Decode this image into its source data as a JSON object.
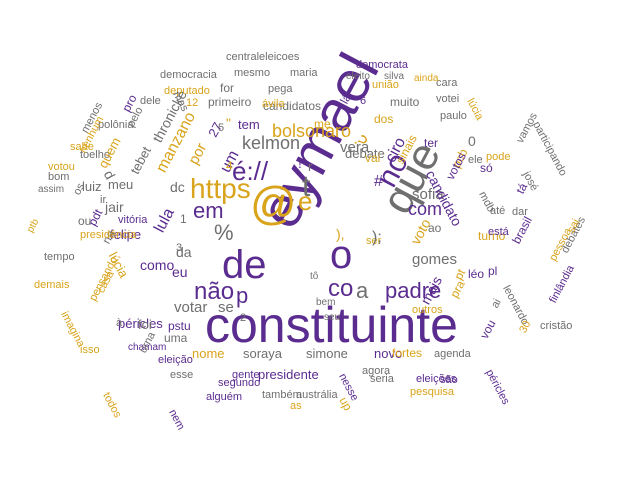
{
  "colors": {
    "purple": "#5b2c8f",
    "gold": "#d9a41c",
    "gray": "#6f6f6f"
  },
  "words": [
    {
      "t": "constituinte",
      "c": "purple",
      "s": 50
    },
    {
      "t": "eymael",
      "c": "purple",
      "s": 58
    },
    {
      "t": "que",
      "c": "gray",
      "s": 44
    },
    {
      "t": "@",
      "c": "gold",
      "s": 46
    },
    {
      "t": "o",
      "c": "purple",
      "s": 40
    },
    {
      "t": "de",
      "c": "purple",
      "s": 40
    },
    {
      "t": "https",
      "c": "gold",
      "s": 28
    },
    {
      "t": "é://",
      "c": "purple",
      "s": 26
    },
    {
      "t": "t",
      "c": "gray",
      "s": 30
    },
    {
      "t": "e",
      "c": "gold",
      "s": 26
    },
    {
      "t": "no",
      "c": "purple",
      "s": 30
    },
    {
      "t": "padre",
      "c": "purple",
      "s": 22
    },
    {
      "t": "co",
      "c": "purple",
      "s": 24
    },
    {
      "t": "a",
      "c": "gray",
      "s": 22
    },
    {
      "t": "não",
      "c": "purple",
      "s": 24
    },
    {
      "t": "em",
      "c": "purple",
      "s": 22
    },
    {
      "t": "%",
      "c": "gray",
      "s": 22
    },
    {
      "t": "p",
      "c": "purple",
      "s": 22
    },
    {
      "t": "bolsonaro",
      "c": "gold",
      "s": 18
    },
    {
      "t": "kelmon",
      "c": "gray",
      "s": 18
    },
    {
      "t": "vera",
      "c": "gray",
      "s": 15
    },
    {
      "t": "ciro",
      "c": "purple",
      "s": 16
    },
    {
      "t": "com",
      "c": "purple",
      "s": 18
    },
    {
      "t": "sofia",
      "c": "gray",
      "s": 15
    },
    {
      "t": "candidato",
      "c": "purple",
      "s": 14
    },
    {
      "t": "voto",
      "c": "gold",
      "s": 14
    },
    {
      "t": "gomes",
      "c": "gray",
      "s": 15
    },
    {
      "t": "mais",
      "c": "purple",
      "s": 14
    },
    {
      "t": "votar",
      "c": "gray",
      "s": 15
    },
    {
      "t": "se",
      "c": "gray",
      "s": 15
    },
    {
      "t": "péricles",
      "c": "purple",
      "s": 13
    },
    {
      "t": "lula",
      "c": "purple",
      "s": 16
    },
    {
      "t": "manzano",
      "c": "gold",
      "s": 16
    },
    {
      "t": "thronicke",
      "c": "gray",
      "s": 14
    },
    {
      "t": "tebet",
      "c": "gray",
      "s": 13
    },
    {
      "t": "felipe",
      "c": "purple",
      "s": 13
    },
    {
      "t": "jair",
      "c": "gray",
      "s": 14
    },
    {
      "t": "lúcia",
      "c": "gold",
      "s": 13
    },
    {
      "t": "pdt",
      "c": "purple",
      "s": 12
    },
    {
      "t": "luiz",
      "c": "gray",
      "s": 13
    },
    {
      "t": "meu",
      "c": "gray",
      "s": 13
    },
    {
      "t": "um",
      "c": "purple",
      "s": 16
    },
    {
      "t": "por",
      "c": "gold",
      "s": 15
    },
    {
      "t": "27",
      "c": "purple",
      "s": 13
    },
    {
      "t": "tem",
      "c": "purple",
      "s": 13
    },
    {
      "t": "dc",
      "c": "gray",
      "s": 14
    },
    {
      "t": "como",
      "c": "purple",
      "s": 14
    },
    {
      "t": "eu",
      "c": "purple",
      "s": 14
    },
    {
      "t": "da",
      "c": "gray",
      "s": 14
    },
    {
      "t": "foi",
      "c": "gray",
      "s": 13
    },
    {
      "t": "pstu",
      "c": "purple",
      "s": 12
    },
    {
      "t": "uma",
      "c": "gray",
      "s": 12
    },
    {
      "t": "nome",
      "c": "gold",
      "s": 13
    },
    {
      "t": "soraya",
      "c": "gray",
      "s": 13
    },
    {
      "t": "simone",
      "c": "gray",
      "s": 13
    },
    {
      "t": "novo",
      "c": "purple",
      "s": 13
    },
    {
      "t": "presidente",
      "c": "purple",
      "s": 13
    },
    {
      "t": "fortes",
      "c": "gold",
      "s": 12
    },
    {
      "t": "agenda",
      "c": "gray",
      "s": 11
    },
    {
      "t": "debate",
      "c": "gray",
      "s": 13
    },
    {
      "t": "turno",
      "c": "gold",
      "s": 12
    },
    {
      "t": "brasil",
      "c": "purple",
      "s": 12
    },
    {
      "t": "léo",
      "c": "purple",
      "s": 12
    },
    {
      "t": "pl",
      "c": "purple",
      "s": 12
    },
    {
      "t": "está",
      "c": "purple",
      "s": 11
    },
    {
      "t": "candidatos",
      "c": "gray",
      "s": 12
    },
    {
      "t": "muito",
      "c": "gray",
      "s": 12
    },
    {
      "t": "votei",
      "c": "gray",
      "s": 11
    },
    {
      "t": "dos",
      "c": "gold",
      "s": 12
    },
    {
      "t": "sinais",
      "c": "gold",
      "s": 12
    },
    {
      "t": "ter",
      "c": "purple",
      "s": 12
    },
    {
      "t": "pcb",
      "c": "gold",
      "s": 12
    },
    {
      "t": "vai",
      "c": "gold",
      "s": 12
    },
    {
      "t": "votos",
      "c": "purple",
      "s": 12
    },
    {
      "t": "só",
      "c": "purple",
      "s": 12
    },
    {
      "t": "pode",
      "c": "gold",
      "s": 11
    },
    {
      "t": "ele",
      "c": "gray",
      "s": 11
    },
    {
      "t": "mdb",
      "c": "gray",
      "s": 11
    },
    {
      "t": "tá",
      "c": "purple",
      "s": 12
    },
    {
      "t": "josé",
      "c": "gray",
      "s": 11
    },
    {
      "t": "até",
      "c": "gray",
      "s": 11
    },
    {
      "t": "dar",
      "c": "gray",
      "s": 11
    },
    {
      "t": "participando",
      "c": "gray",
      "s": 11
    },
    {
      "t": "vamos",
      "c": "gray",
      "s": 11
    },
    {
      "t": "lúcia",
      "c": "gold",
      "s": 11
    },
    {
      "t": "paulo",
      "c": "gray",
      "s": 11
    },
    {
      "t": "cara",
      "c": "gray",
      "s": 11
    },
    {
      "t": "união",
      "c": "gold",
      "s": 11
    },
    {
      "t": "ainda",
      "c": "gold",
      "s": 10
    },
    {
      "t": "silva",
      "c": "gray",
      "s": 10
    },
    {
      "t": "eleito",
      "c": "gray",
      "s": 10
    },
    {
      "t": "democrata",
      "c": "purple",
      "s": 11
    },
    {
      "t": "centraleleicoes",
      "c": "gray",
      "s": 11
    },
    {
      "t": "mesmo",
      "c": "gray",
      "s": 11
    },
    {
      "t": "maria",
      "c": "gray",
      "s": 11
    },
    {
      "t": "democracia",
      "c": "gray",
      "s": 11
    },
    {
      "t": "deputado",
      "c": "gold",
      "s": 11
    },
    {
      "t": "pega",
      "c": "gray",
      "s": 11
    },
    {
      "t": "ávila",
      "c": "gold",
      "s": 11
    },
    {
      "t": "primeiro",
      "c": "gray",
      "s": 12
    },
    {
      "t": "for",
      "c": "gray",
      "s": 12
    },
    {
      "t": "dele",
      "c": "gray",
      "s": 11
    },
    {
      "t": "mas",
      "c": "gray",
      "s": 11
    },
    {
      "t": "12",
      "c": "gold",
      "s": 11
    },
    {
      "t": "pelo",
      "c": "gray",
      "s": 11
    },
    {
      "t": "polônia",
      "c": "gray",
      "s": 11
    },
    {
      "t": "toelho",
      "c": "gray",
      "s": 11
    },
    {
      "t": "sabe",
      "c": "gold",
      "s": 11
    },
    {
      "t": "votou",
      "c": "gold",
      "s": 11
    },
    {
      "t": "bom",
      "c": "gray",
      "s": 11
    },
    {
      "t": "assim",
      "c": "gray",
      "s": 10
    },
    {
      "t": "menos",
      "c": "gray",
      "s": 11
    },
    {
      "t": "quem",
      "c": "gold",
      "s": 13
    },
    {
      "t": "nenhum",
      "c": "gold",
      "s": 11
    },
    {
      "t": "pro",
      "c": "purple",
      "s": 12
    },
    {
      "t": "ou",
      "c": "gray",
      "s": 12
    },
    {
      "t": "na",
      "c": "gray",
      "s": 12
    },
    {
      "t": "vitória",
      "c": "purple",
      "s": 11
    },
    {
      "t": "ptb",
      "c": "gold",
      "s": 10
    },
    {
      "t": "tempo",
      "c": "gray",
      "s": 11
    },
    {
      "t": "demais",
      "c": "gold",
      "s": 11
    },
    {
      "t": "os",
      "c": "gray",
      "s": 11
    },
    {
      "t": "presidência",
      "c": "gold",
      "s": 11
    },
    {
      "t": "casa",
      "c": "gold",
      "s": 11
    },
    {
      "t": "pensando",
      "c": "gold",
      "s": 11
    },
    {
      "t": "imagina",
      "c": "gold",
      "s": 11
    },
    {
      "t": "isso",
      "c": "gold",
      "s": 11
    },
    {
      "t": "chamam",
      "c": "purple",
      "s": 10
    },
    {
      "t": "todos",
      "c": "gold",
      "s": 11
    },
    {
      "t": "urna",
      "c": "gray",
      "s": 11
    },
    {
      "t": "eleição",
      "c": "purple",
      "s": 11
    },
    {
      "t": "esse",
      "c": "gray",
      "s": 11
    },
    {
      "t": "gente",
      "c": "purple",
      "s": 11
    },
    {
      "t": "segundo",
      "c": "purple",
      "s": 11
    },
    {
      "t": "alguém",
      "c": "purple",
      "s": 11
    },
    {
      "t": "nem",
      "c": "purple",
      "s": 11
    },
    {
      "t": "também",
      "c": "gray",
      "s": 11
    },
    {
      "t": "austrália",
      "c": "gray",
      "s": 11
    },
    {
      "t": "as",
      "c": "gold",
      "s": 11
    },
    {
      "t": "nesse",
      "c": "purple",
      "s": 11
    },
    {
      "t": "up",
      "c": "gold",
      "s": 12
    },
    {
      "t": "agora",
      "c": "gray",
      "s": 11
    },
    {
      "t": "seria",
      "c": "gray",
      "s": 11
    },
    {
      "t": "eleições",
      "c": "purple",
      "s": 11
    },
    {
      "t": "pesquisa",
      "c": "gold",
      "s": 11
    },
    {
      "t": "são",
      "c": "purple",
      "s": 11
    },
    {
      "t": "outros",
      "c": "gold",
      "s": 11
    },
    {
      "t": "ai",
      "c": "gray",
      "s": 11
    },
    {
      "t": "vou",
      "c": "purple",
      "s": 12
    },
    {
      "t": "pra",
      "c": "gold",
      "s": 12
    },
    {
      "t": "pt",
      "c": "gold",
      "s": 12
    },
    {
      "t": "leonardo",
      "c": "gray",
      "s": 11
    },
    {
      "t": "péricles",
      "c": "purple",
      "s": 11
    },
    {
      "t": "cristão",
      "c": "gray",
      "s": 11
    },
    {
      "t": "30",
      "c": "gold",
      "s": 11
    },
    {
      "t": "pessoa",
      "c": "gold",
      "s": 11
    },
    {
      "t": "debates",
      "c": "gray",
      "s": 11
    },
    {
      "t": "finlândia",
      "c": "purple",
      "s": 11
    },
    {
      "t": "sai",
      "c": "gold",
      "s": 11
    },
    {
      "t": "ser",
      "c": "gold",
      "s": 11
    },
    {
      "t": "bem",
      "c": "gray",
      "s": 10
    },
    {
      "t": "seu",
      "c": "gray",
      "s": 10
    },
    {
      "t": "tô",
      "c": "gray",
      "s": 10
    },
    {
      "t": "à",
      "c": "gray",
      "s": 11
    },
    {
      "t": "ir",
      "c": "gray",
      "s": 11
    },
    {
      "t": "d",
      "c": "gray",
      "s": 14
    },
    {
      "t": "r",
      "c": "gray",
      "s": 13
    },
    {
      "t": "me",
      "c": "gold",
      "s": 12
    },
    {
      "t": "lá",
      "c": "purple",
      "s": 12
    },
    {
      "t": "ao",
      "c": "gray",
      "s": 12
    },
    {
      "t": "?",
      "c": "gold",
      "s": 18
    },
    {
      "t": "#",
      "c": "purple",
      "s": 16
    },
    {
      "t": "'",
      "c": "gray",
      "s": 18
    },
    {
      "t": "!",
      "c": "purple",
      "s": 14
    },
    {
      "t": "3",
      "c": "gray",
      "s": 11
    },
    {
      "t": "5",
      "c": "gray",
      "s": 11
    },
    {
      "t": "6",
      "c": "purple",
      "s": 11
    },
    {
      "t": "0",
      "c": "gray",
      "s": 14
    },
    {
      "t": "4",
      "c": "gold",
      "s": 12
    },
    {
      "t": "2",
      "c": "gray",
      "s": 11
    },
    {
      "t": "1",
      "c": "gray",
      "s": 12
    },
    {
      "t": "),",
      "c": "gold",
      "s": 14
    },
    {
      "t": "\"",
      "c": "gold",
      "s": 14
    },
    {
      "t": ");",
      "c": "gray",
      "s": 16
    }
  ]
}
